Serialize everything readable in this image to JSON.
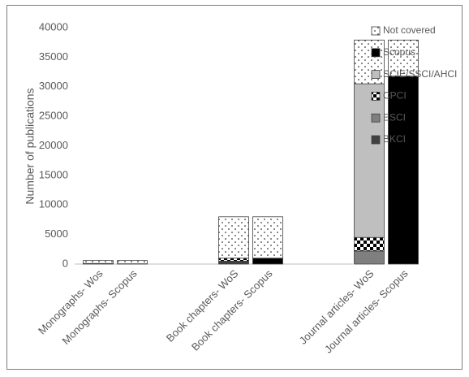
{
  "chart_data": {
    "type": "stacked_bar",
    "y_label": "Number of publications",
    "categories": [
      "Monographs- Wos",
      "Monographs- Scopus",
      "Book chapters- WoS",
      "Book chapters- Scopus",
      "Journal articles- WoS",
      "Journal articles- Scopus"
    ],
    "series": [
      {
        "name": "BKCI",
        "color": "#404040",
        "values": [
          100,
          0,
          500,
          0,
          0,
          0
        ]
      },
      {
        "name": "ESCI",
        "color": "#7f7f7f",
        "values": [
          0,
          0,
          0,
          0,
          2200,
          0
        ]
      },
      {
        "name": "CPCI",
        "color": "#000000",
        "pattern": "checker",
        "values": [
          0,
          0,
          500,
          0,
          2300,
          0
        ]
      },
      {
        "name": "SCIE/SSCI/AHCI",
        "color": "#bfbfbf",
        "values": [
          0,
          0,
          0,
          0,
          26000,
          0
        ]
      },
      {
        "name": "Scopus",
        "color": "#000000",
        "values": [
          0,
          50,
          0,
          1000,
          0,
          31800
        ]
      },
      {
        "name": "Not covered",
        "color": "#ffffff",
        "pattern": "dots",
        "values": [
          500,
          550,
          7000,
          7000,
          7400,
          6100
        ]
      }
    ],
    "ylim": [
      0,
      40000
    ],
    "yticks": [
      0,
      5000,
      10000,
      15000,
      20000,
      25000,
      30000,
      35000,
      40000
    ],
    "grid": false,
    "legend": "right"
  }
}
